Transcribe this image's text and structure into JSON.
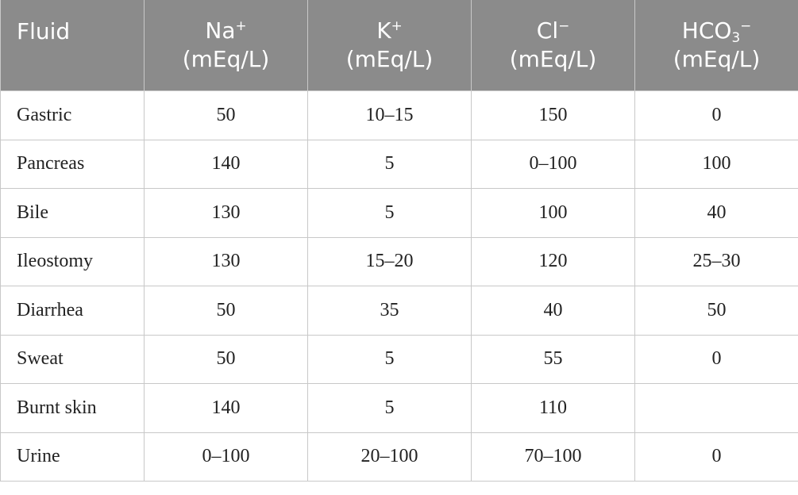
{
  "table": {
    "header": [
      {
        "base": "Fluid"
      },
      {
        "base": "Na",
        "sup": "+",
        "unit": "(mEq/L)"
      },
      {
        "base": "K",
        "sup": "+",
        "unit": "(mEq/L)"
      },
      {
        "base": "Cl",
        "sup": "−",
        "unit": "(mEq/L)"
      },
      {
        "base": "HCO",
        "sub": "3",
        "sup": "−",
        "unit": "(mEq/L)"
      }
    ],
    "rows": [
      [
        "Gastric",
        "50",
        "10–15",
        "150",
        "0"
      ],
      [
        "Pancreas",
        "140",
        "5",
        "0–100",
        "100"
      ],
      [
        "Bile",
        "130",
        "5",
        "100",
        "40"
      ],
      [
        "Ileostomy",
        "130",
        "15–20",
        "120",
        "25–30"
      ],
      [
        "Diarrhea",
        "50",
        "35",
        "40",
        "50"
      ],
      [
        "Sweat",
        "50",
        "5",
        "55",
        "0"
      ],
      [
        "Burnt skin",
        "140",
        "5",
        "110",
        null
      ],
      [
        "Urine",
        "0–100",
        "20–100",
        "70–100",
        "0"
      ]
    ]
  }
}
